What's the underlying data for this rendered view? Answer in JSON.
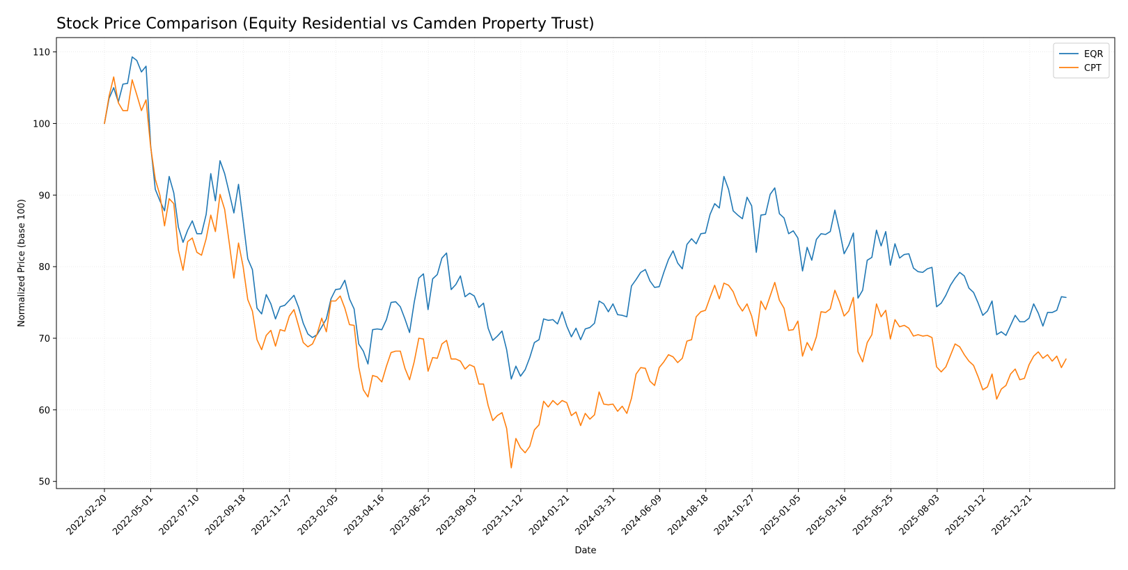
{
  "chart_data": {
    "type": "line",
    "title": "Stock Price Comparison (Equity Residential vs Camden Property Trust)",
    "xlabel": "Date",
    "ylabel": "Normalized Price (base 100)",
    "ylim": [
      49,
      112
    ],
    "y_ticks": [
      50,
      60,
      70,
      80,
      90,
      100,
      110
    ],
    "x_start": "2022-02-20",
    "x_end": "2026-02-14",
    "x_ticks": [
      "2022-02-20",
      "2022-05-01",
      "2022-07-10",
      "2022-09-18",
      "2022-11-27",
      "2023-02-05",
      "2023-04-16",
      "2023-06-25",
      "2023-09-03",
      "2023-11-12",
      "2024-01-21",
      "2024-03-31",
      "2024-06-09",
      "2024-08-18",
      "2024-10-27",
      "2025-01-05",
      "2025-03-16",
      "2025-05-25",
      "2025-08-03",
      "2025-10-12",
      "2025-12-21"
    ],
    "grid": true,
    "legend_position": "top-right",
    "sampling": "weekly",
    "series": [
      {
        "name": "EQR",
        "color": "#1f77b4",
        "values": [
          100,
          103.5,
          105,
          103,
          105.5,
          105.6,
          109.3,
          108.8,
          107.2,
          108,
          96.9,
          90.8,
          89.2,
          87.8,
          92.6,
          90.3,
          85.5,
          83.4,
          85.1,
          86.4,
          84.6,
          84.6,
          87.3,
          93,
          89.2,
          94.8,
          93,
          90.3,
          87.5,
          91.5,
          86.4,
          81.1,
          79.6,
          74.2,
          73.4,
          76.1,
          74.8,
          72.7,
          74.4,
          74.6,
          75.3,
          76,
          74.3,
          72.1,
          70.6,
          70.1,
          70.5,
          71.6,
          72.7,
          75.5,
          76.8,
          76.9,
          78.1,
          75.5,
          74.1,
          69.2,
          68.2,
          66.4,
          71.2,
          71.3,
          71.2,
          72.6,
          75,
          75.1,
          74.4,
          72.7,
          70.8,
          75,
          78.4,
          79,
          74,
          78.3,
          78.9,
          81.2,
          81.9,
          76.8,
          77.5,
          78.7,
          75.8,
          76.3,
          75.9,
          74.3,
          74.9,
          71.4,
          69.7,
          70.3,
          71,
          68.4,
          64.3,
          66.1,
          64.7,
          65.6,
          67.3,
          69.4,
          69.8,
          72.7,
          72.5,
          72.6,
          72,
          73.7,
          71.7,
          70.2,
          71.4,
          69.8,
          71.3,
          71.5,
          72.1,
          75.2,
          74.8,
          73.7,
          74.8,
          73.3,
          73.2,
          73,
          77.3,
          78.2,
          79.2,
          79.6,
          78,
          77.1,
          77.2,
          79.2,
          81,
          82.2,
          80.5,
          79.7,
          83.1,
          83.9,
          83.2,
          84.6,
          84.7,
          87.3,
          88.8,
          88.2,
          92.6,
          90.8,
          87.8,
          87.2,
          86.7,
          89.7,
          88.5,
          82,
          87.2,
          87.3,
          90.1,
          91,
          87.4,
          86.8,
          84.6,
          85,
          84,
          79.4,
          82.7,
          80.9,
          83.8,
          84.6,
          84.5,
          84.9,
          87.9,
          85.1,
          81.8,
          83,
          84.7,
          75.6,
          76.7,
          80.9,
          81.3,
          85.1,
          82.9,
          84.9,
          80.2,
          83.2,
          81.2,
          81.7,
          81.8,
          79.8,
          79.3,
          79.2,
          79.7,
          79.9,
          74.4,
          74.9,
          76,
          77.4,
          78.4,
          79.2,
          78.7,
          77,
          76.4,
          74.9,
          73.2,
          73.8,
          75.2,
          70.5,
          70.9,
          70.4,
          71.8,
          73.2,
          72.3,
          72.3,
          72.8,
          74.8,
          73.5,
          71.7,
          73.6,
          73.6,
          73.9,
          75.8,
          75.7
        ]
      },
      {
        "name": "CPT",
        "color": "#ff7f0e",
        "values": [
          100,
          103.8,
          106.5,
          102.9,
          101.8,
          101.8,
          106.1,
          104,
          101.8,
          103.3,
          96.7,
          92.2,
          90,
          85.7,
          89.5,
          88.8,
          82.3,
          79.5,
          83.5,
          84,
          82,
          81.6,
          83.9,
          87.2,
          84.9,
          90.1,
          88,
          83.3,
          78.4,
          83.3,
          80,
          75.4,
          73.8,
          69.8,
          68.4,
          70.4,
          71.1,
          68.9,
          71.2,
          71,
          73.1,
          74,
          71.7,
          69.4,
          68.8,
          69.2,
          70.6,
          72.8,
          70.9,
          75.2,
          75.2,
          75.9,
          74.2,
          71.9,
          71.8,
          66,
          62.8,
          61.8,
          64.8,
          64.6,
          63.9,
          66.1,
          68,
          68.2,
          68.2,
          65.8,
          64.2,
          66.7,
          70,
          69.9,
          65.4,
          67.3,
          67.2,
          69.2,
          69.7,
          67.1,
          67.1,
          66.8,
          65.7,
          66.3,
          66,
          63.6,
          63.6,
          60.6,
          58.5,
          59.2,
          59.6,
          57.4,
          51.9,
          56,
          54.7,
          54,
          54.9,
          57.2,
          57.9,
          61.2,
          60.4,
          61.3,
          60.7,
          61.3,
          61,
          59.2,
          59.7,
          57.8,
          59.5,
          58.7,
          59.3,
          62.5,
          60.8,
          60.7,
          60.8,
          59.8,
          60.5,
          59.5,
          61.6,
          65,
          65.9,
          65.8,
          64,
          63.4,
          65.9,
          66.7,
          67.7,
          67.4,
          66.6,
          67.2,
          69.6,
          69.8,
          73,
          73.7,
          73.9,
          75.7,
          77.4,
          75.5,
          77.7,
          77.4,
          76.5,
          74.8,
          73.8,
          74.8,
          73.1,
          70.3,
          75.2,
          74,
          75.9,
          77.8,
          75.3,
          74.2,
          71.1,
          71.2,
          72.4,
          67.5,
          69.4,
          68.3,
          70.2,
          73.7,
          73.6,
          74.1,
          76.7,
          75.1,
          73.1,
          73.8,
          75.7,
          68.1,
          66.7,
          69.4,
          70.5,
          74.8,
          73,
          73.9,
          69.9,
          72.6,
          71.6,
          71.8,
          71.4,
          70.3,
          70.5,
          70.3,
          70.4,
          70.1,
          66,
          65.3,
          66,
          67.6,
          69.2,
          68.8,
          67.7,
          66.8,
          66.2,
          64.6,
          62.8,
          63.2,
          65,
          61.5,
          62.9,
          63.4,
          65,
          65.7,
          64.2,
          64.4,
          66.3,
          67.5,
          68.1,
          67.2,
          67.7,
          66.8,
          67.5,
          65.9,
          67.1
        ]
      }
    ]
  }
}
